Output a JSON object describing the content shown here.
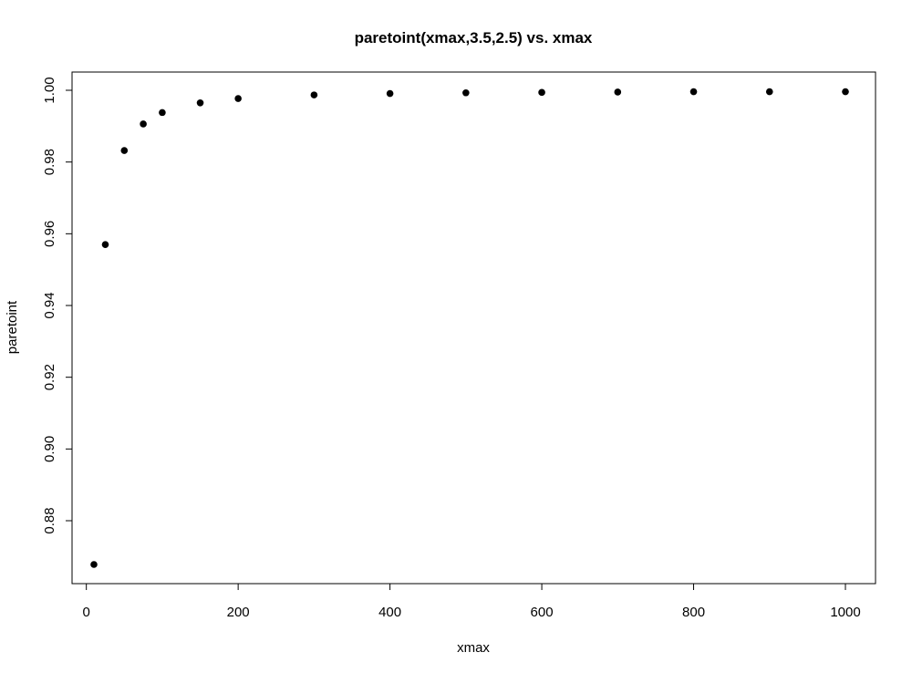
{
  "chart_data": {
    "type": "scatter",
    "title": "paretoint(xmax,3.5,2.5) vs. xmax",
    "xlabel": "xmax",
    "ylabel": "paretoint",
    "xlim": [
      10,
      1000
    ],
    "ylim": [
      0.8678,
      1.0
    ],
    "x_ticks": [
      0,
      200,
      400,
      600,
      800,
      1000
    ],
    "x_tick_labels": [
      "0",
      "200",
      "400",
      "600",
      "800",
      "1000"
    ],
    "y_ticks": [
      0.88,
      0.9,
      0.92,
      0.94,
      0.96,
      0.98,
      1.0
    ],
    "y_tick_labels": [
      "0.88",
      "0.90",
      "0.92",
      "0.94",
      "0.96",
      "0.98",
      "1.00"
    ],
    "grid": false,
    "legend": "none",
    "point_color": "#000000",
    "series": [
      {
        "x": [
          10,
          25,
          50,
          75,
          100,
          150,
          200,
          300,
          400,
          500,
          600,
          700,
          800,
          900,
          1000
        ],
        "y": [
          0.8678,
          0.957,
          0.9832,
          0.9906,
          0.9938,
          0.9965,
          0.9977,
          0.9987,
          0.9991,
          0.9993,
          0.9994,
          0.9995,
          0.9996,
          0.9996,
          0.9996
        ]
      }
    ]
  }
}
